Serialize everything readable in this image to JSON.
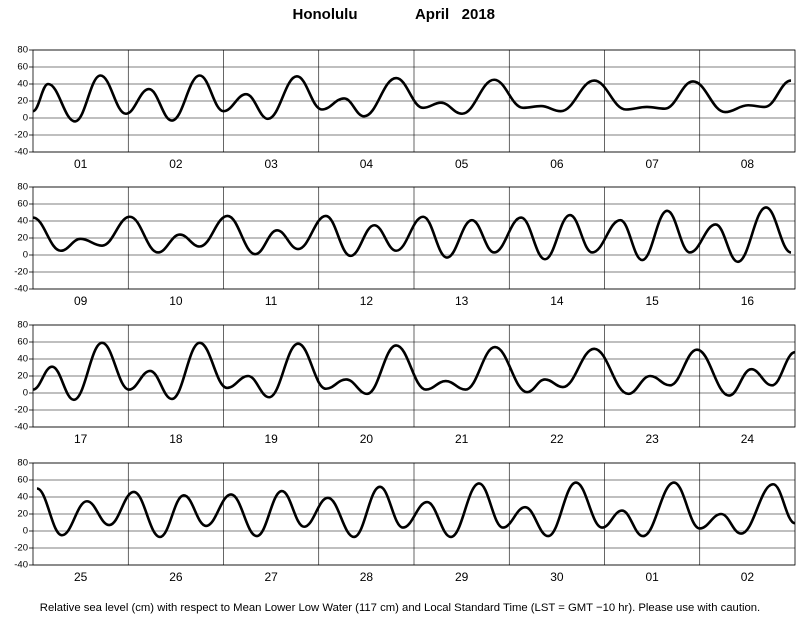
{
  "title": "Honolulu",
  "subtitle": "April   2018",
  "note": "Relative sea level (cm) with respect to Mean Lower Low Water (117 cm) and Local Standard Time (LST = GMT −10 hr). Please use with caution.",
  "chart_data": [
    {
      "type": "line",
      "categories": [
        "01",
        "02",
        "03",
        "04",
        "05",
        "06",
        "07",
        "08"
      ],
      "xlim": [
        0,
        192
      ],
      "ylim": [
        -40,
        80
      ],
      "yticks": [
        -40,
        -20,
        0,
        20,
        40,
        60,
        80
      ],
      "grid": true,
      "series": [
        {
          "color": "#000000",
          "x": [
            0,
            3.8,
            10.6,
            17,
            23.4,
            29.2,
            35,
            42,
            48,
            53.7,
            59.2,
            66.5,
            72.8,
            78.4,
            83.4,
            91.5,
            98.3,
            102.8,
            108.1,
            116.2,
            123.5,
            128,
            133,
            141.4,
            149.4,
            154.7,
            159.2,
            166.3,
            174.4,
            180.2,
            184.4,
            191
          ],
          "values": [
            8,
            40,
            -4,
            50,
            5,
            34,
            -3,
            50,
            8,
            28,
            -1,
            49,
            10,
            23,
            2,
            47,
            12,
            18,
            5,
            45,
            12,
            14,
            8,
            44,
            10,
            13,
            11,
            43,
            7,
            15,
            13,
            44
          ]
        }
      ]
    },
    {
      "type": "line",
      "categories": [
        "09",
        "10",
        "11",
        "12",
        "13",
        "14",
        "15",
        "16"
      ],
      "xlim": [
        0,
        192
      ],
      "ylim": [
        -40,
        80
      ],
      "yticks": [
        -40,
        -20,
        0,
        20,
        40,
        60,
        80
      ],
      "grid": true,
      "series": [
        {
          "color": "#000000",
          "x": [
            0,
            7,
            12,
            17.4,
            24.4,
            31.5,
            37,
            42,
            49,
            56,
            61.5,
            66.8,
            73.8,
            80,
            86,
            91.5,
            98.3,
            104.3,
            110.6,
            116.2,
            123,
            129,
            135.3,
            140.9,
            148,
            153.5,
            159.8,
            165.5,
            172,
            177.6,
            184.7,
            191
          ],
          "values": [
            44,
            5,
            19,
            11,
            45,
            3,
            24,
            10,
            46,
            1,
            29,
            7,
            46,
            -1,
            35,
            5,
            45,
            -3,
            41,
            3,
            44,
            -5,
            47,
            3,
            41,
            -6,
            52,
            3,
            36,
            -8,
            56,
            3
          ]
        }
      ]
    },
    {
      "type": "line",
      "categories": [
        "17",
        "18",
        "19",
        "20",
        "21",
        "22",
        "23",
        "24"
      ],
      "xlim": [
        0,
        192
      ],
      "ylim": [
        -40,
        80
      ],
      "yticks": [
        -40,
        -20,
        0,
        20,
        40,
        60,
        80
      ],
      "grid": true,
      "series": [
        {
          "color": "#000000",
          "x": [
            0,
            4.8,
            10.3,
            17.4,
            24.2,
            29.5,
            35,
            42,
            48.9,
            54.2,
            59.5,
            66.8,
            73.8,
            78.9,
            84.2,
            91.5,
            99,
            104,
            109,
            116.4,
            124.5,
            129,
            133.5,
            141.4,
            150,
            155.5,
            160.5,
            167.3,
            175.4,
            181,
            186.2,
            192
          ],
          "values": [
            4,
            31,
            -8,
            59,
            4,
            26,
            -7,
            59,
            6,
            20,
            -5,
            58,
            5,
            16,
            -1,
            56,
            4,
            14,
            4,
            54,
            1,
            16,
            7,
            52,
            -1,
            20,
            9,
            51,
            -3,
            28,
            9,
            48
          ]
        }
      ]
    },
    {
      "type": "line",
      "categories": [
        "25",
        "26",
        "27",
        "28",
        "29",
        "30",
        "01",
        "02"
      ],
      "xlim": [
        0,
        192
      ],
      "ylim": [
        -40,
        80
      ],
      "yticks": [
        -40,
        -20,
        0,
        20,
        40,
        60,
        80
      ],
      "grid": true,
      "series": [
        {
          "color": "#000000",
          "x": [
            1,
            7.3,
            13.6,
            19.2,
            25.4,
            32,
            38,
            43.6,
            49.9,
            56.4,
            62.7,
            68.3,
            74.3,
            80.9,
            87.4,
            93.2,
            99.3,
            105.3,
            112.4,
            118.4,
            124,
            129.8,
            136.8,
            143.4,
            148.4,
            153.7,
            161.5,
            168,
            173.4,
            178.4,
            186.5,
            192
          ],
          "values": [
            50,
            -5,
            35,
            7,
            46,
            -7,
            42,
            6,
            43,
            -6,
            47,
            5,
            39,
            -7,
            52,
            4,
            34,
            -7,
            56,
            4,
            28,
            -6,
            57,
            4,
            24,
            -6,
            57,
            3,
            20,
            -3,
            55,
            9
          ]
        }
      ]
    }
  ]
}
